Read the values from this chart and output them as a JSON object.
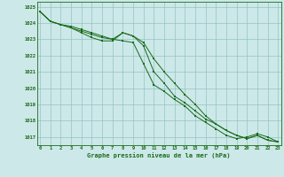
{
  "x": [
    0,
    1,
    2,
    3,
    4,
    5,
    6,
    7,
    8,
    9,
    10,
    11,
    12,
    13,
    14,
    15,
    16,
    17,
    18,
    19,
    20,
    21,
    22,
    23
  ],
  "line1": [
    1024.7,
    1024.1,
    1023.9,
    1023.7,
    1023.5,
    1023.3,
    1023.1,
    1023.0,
    1023.4,
    1023.2,
    1022.6,
    1021.0,
    1020.3,
    1019.5,
    1019.1,
    1018.6,
    1018.1,
    1017.8,
    1017.4,
    1017.1,
    1016.9,
    1017.1,
    1016.8,
    1016.7
  ],
  "line2": [
    1024.7,
    1024.1,
    1023.9,
    1023.7,
    1023.4,
    1023.1,
    1022.9,
    1022.9,
    1023.4,
    1023.2,
    1022.8,
    1021.8,
    1021.0,
    1020.3,
    1019.6,
    1019.0,
    1018.3,
    1017.8,
    1017.4,
    1017.1,
    1016.9,
    1017.1,
    1016.8,
    1016.7
  ],
  "line3": [
    1024.7,
    1024.1,
    1023.9,
    1023.8,
    1023.6,
    1023.4,
    1023.2,
    1023.0,
    1022.9,
    1022.8,
    1021.5,
    1020.2,
    1019.8,
    1019.3,
    1018.9,
    1018.3,
    1017.9,
    1017.5,
    1017.1,
    1016.9,
    1017.0,
    1017.2,
    1017.0,
    1016.7
  ],
  "line_color": "#1a6b1a",
  "bg_color": "#cce8e8",
  "grid_color": "#88bbbb",
  "xlabel": "Graphe pression niveau de la mer (hPa)",
  "ylim": [
    1016.5,
    1025.3
  ],
  "yticks": [
    1017,
    1018,
    1019,
    1020,
    1021,
    1022,
    1023,
    1024,
    1025
  ]
}
